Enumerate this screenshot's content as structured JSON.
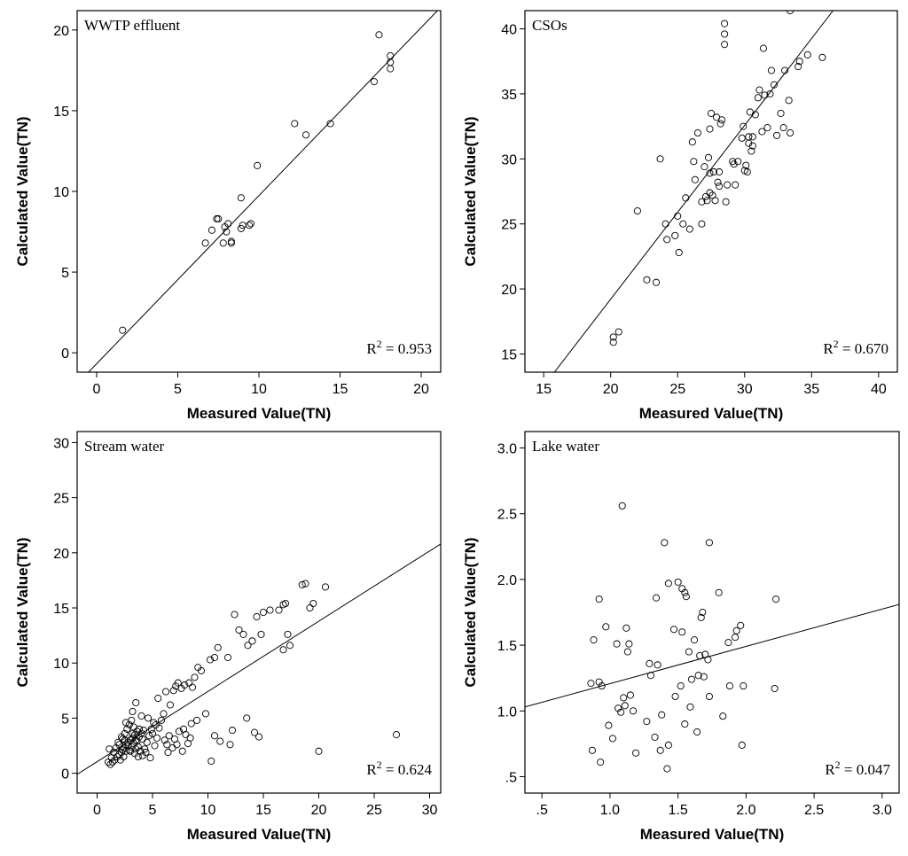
{
  "chart_data": [
    {
      "type": "scatter",
      "title": "WWTP effluent",
      "xlabel": "Measured Value(TN)",
      "ylabel": "Calculated Value(TN)",
      "xlim": [
        -1.2,
        21.2
      ],
      "ylim": [
        -1.2,
        21.2
      ],
      "xticks": [
        0,
        5,
        10,
        15,
        20
      ],
      "xtick_labels": [
        "0",
        "5",
        "10",
        "15",
        "20"
      ],
      "yticks": [
        0,
        5,
        10,
        15,
        20
      ],
      "ytick_labels": [
        "0",
        "5",
        "10",
        "15",
        "20"
      ],
      "r2_prefix": "R",
      "r2_exp": "2",
      "r2_value": " = 0.953",
      "fit": [
        [
          -0.5,
          -1.2
        ],
        [
          21.0,
          21.2
        ]
      ],
      "points": [
        [
          1.6,
          1.4
        ],
        [
          6.7,
          6.8
        ],
        [
          7.1,
          7.6
        ],
        [
          7.4,
          8.3
        ],
        [
          7.5,
          8.3
        ],
        [
          7.8,
          6.8
        ],
        [
          7.9,
          7.8
        ],
        [
          8.0,
          7.5
        ],
        [
          8.1,
          8.0
        ],
        [
          8.3,
          6.9
        ],
        [
          8.3,
          6.8
        ],
        [
          8.9,
          9.6
        ],
        [
          8.9,
          7.7
        ],
        [
          9.0,
          7.9
        ],
        [
          9.4,
          7.9
        ],
        [
          9.5,
          8.0
        ],
        [
          9.9,
          11.6
        ],
        [
          12.2,
          14.2
        ],
        [
          12.9,
          13.5
        ],
        [
          14.4,
          14.2
        ],
        [
          17.1,
          16.8
        ],
        [
          17.4,
          19.7
        ],
        [
          18.1,
          18.4
        ],
        [
          18.1,
          18.0
        ],
        [
          18.1,
          17.6
        ]
      ]
    },
    {
      "type": "scatter",
      "title": "CSOs",
      "xlabel": "Measured Value(TN)",
      "ylabel": "Calculated Value(TN)",
      "xlim": [
        13.6,
        41.4
      ],
      "ylim": [
        13.6,
        41.4
      ],
      "xticks": [
        15,
        20,
        25,
        30,
        35,
        40
      ],
      "xtick_labels": [
        "15",
        "20",
        "25",
        "30",
        "35",
        "40"
      ],
      "yticks": [
        15,
        20,
        25,
        30,
        35,
        40
      ],
      "ytick_labels": [
        "15",
        "20",
        "25",
        "30",
        "35",
        "40"
      ],
      "r2_prefix": "R",
      "r2_exp": "2",
      "r2_value": " = 0.670",
      "fit": [
        [
          15.8,
          13.6
        ],
        [
          36.6,
          41.4
        ]
      ],
      "points": [
        [
          20.2,
          15.9
        ],
        [
          20.2,
          16.3
        ],
        [
          20.6,
          16.7
        ],
        [
          22.0,
          26.0
        ],
        [
          22.7,
          20.7
        ],
        [
          23.4,
          20.5
        ],
        [
          23.7,
          30.0
        ],
        [
          24.1,
          25.0
        ],
        [
          24.2,
          23.8
        ],
        [
          24.8,
          24.1
        ],
        [
          25.0,
          25.6
        ],
        [
          25.1,
          22.8
        ],
        [
          25.4,
          25.0
        ],
        [
          25.6,
          27.0
        ],
        [
          25.9,
          24.6
        ],
        [
          26.1,
          31.3
        ],
        [
          26.2,
          29.8
        ],
        [
          26.3,
          28.4
        ],
        [
          26.5,
          32.0
        ],
        [
          26.8,
          26.7
        ],
        [
          26.8,
          25.0
        ],
        [
          27.0,
          29.4
        ],
        [
          27.1,
          27.1
        ],
        [
          27.2,
          26.8
        ],
        [
          27.3,
          30.1
        ],
        [
          27.4,
          32.3
        ],
        [
          27.4,
          27.4
        ],
        [
          27.4,
          28.9
        ],
        [
          27.5,
          33.5
        ],
        [
          27.6,
          27.2
        ],
        [
          27.7,
          29.0
        ],
        [
          27.8,
          26.8
        ],
        [
          27.9,
          33.2
        ],
        [
          28.0,
          28.2
        ],
        [
          28.1,
          29.0
        ],
        [
          28.1,
          27.9
        ],
        [
          28.2,
          32.7
        ],
        [
          28.3,
          33.0
        ],
        [
          28.5,
          40.4
        ],
        [
          28.5,
          39.6
        ],
        [
          28.5,
          38.8
        ],
        [
          28.6,
          26.7
        ],
        [
          28.7,
          28.0
        ],
        [
          29.1,
          29.8
        ],
        [
          29.2,
          29.6
        ],
        [
          29.3,
          28.0
        ],
        [
          29.5,
          29.8
        ],
        [
          29.8,
          31.6
        ],
        [
          29.9,
          32.5
        ],
        [
          30.0,
          29.1
        ],
        [
          30.1,
          29.5
        ],
        [
          30.2,
          29.0
        ],
        [
          30.3,
          31.2
        ],
        [
          30.3,
          31.7
        ],
        [
          30.4,
          33.6
        ],
        [
          30.5,
          30.6
        ],
        [
          30.6,
          31.7
        ],
        [
          30.6,
          31.0
        ],
        [
          30.8,
          33.4
        ],
        [
          31.0,
          34.7
        ],
        [
          31.1,
          35.3
        ],
        [
          31.3,
          32.1
        ],
        [
          31.4,
          38.5
        ],
        [
          31.5,
          34.9
        ],
        [
          31.7,
          32.4
        ],
        [
          31.9,
          35.0
        ],
        [
          32.0,
          36.8
        ],
        [
          32.2,
          35.7
        ],
        [
          32.4,
          31.8
        ],
        [
          32.7,
          33.5
        ],
        [
          32.9,
          32.4
        ],
        [
          33.0,
          36.8
        ],
        [
          33.3,
          34.5
        ],
        [
          33.4,
          32.0
        ],
        [
          33.4,
          41.4
        ],
        [
          34.0,
          37.1
        ],
        [
          34.1,
          37.5
        ],
        [
          34.7,
          38.0
        ],
        [
          35.8,
          37.8
        ]
      ]
    },
    {
      "type": "scatter",
      "title": "Stream water",
      "xlabel": "Measured Value(TN)",
      "ylabel": "Calculated Value(TN)",
      "xlim": [
        -1.8,
        31.0
      ],
      "ylim": [
        -1.8,
        31.0
      ],
      "xticks": [
        0,
        5,
        10,
        15,
        20,
        25,
        30
      ],
      "xtick_labels": [
        "0",
        "5",
        "10",
        "15",
        "20",
        "25",
        "30"
      ],
      "yticks": [
        0,
        5,
        10,
        15,
        20,
        25,
        30
      ],
      "ytick_labels": [
        "0",
        "5",
        "10",
        "15",
        "20",
        "25",
        "30"
      ],
      "r2_prefix": "R",
      "r2_exp": "2",
      "r2_value": " = 0.624",
      "fit": [
        [
          -1.8,
          -0.1
        ],
        [
          31.0,
          20.8
        ]
      ],
      "points": [
        [
          1.2,
          0.8
        ],
        [
          1.4,
          1.0
        ],
        [
          1.6,
          1.2
        ],
        [
          1.8,
          1.5
        ],
        [
          2.0,
          1.7
        ],
        [
          2.2,
          1.9
        ],
        [
          2.4,
          2.3
        ],
        [
          2.6,
          2.6
        ],
        [
          2.8,
          2.8
        ],
        [
          3.0,
          3.0
        ],
        [
          3.2,
          3.2
        ],
        [
          3.4,
          3.5
        ],
        [
          3.6,
          3.8
        ],
        [
          3.8,
          4.0
        ],
        [
          2.0,
          2.6
        ],
        [
          2.3,
          3.1
        ],
        [
          2.5,
          3.6
        ],
        [
          2.7,
          4.0
        ],
        [
          2.9,
          4.4
        ],
        [
          3.1,
          4.8
        ],
        [
          3.3,
          4.2
        ],
        [
          3.5,
          3.0
        ],
        [
          3.7,
          2.4
        ],
        [
          3.9,
          2.0
        ],
        [
          4.1,
          1.6
        ],
        [
          4.3,
          2.2
        ],
        [
          4.5,
          2.8
        ],
        [
          4.7,
          3.4
        ],
        [
          4.9,
          4.0
        ],
        [
          5.1,
          4.6
        ],
        [
          2.1,
          1.2
        ],
        [
          2.4,
          1.5
        ],
        [
          2.6,
          2.0
        ],
        [
          2.9,
          2.1
        ],
        [
          3.1,
          2.4
        ],
        [
          3.3,
          2.7
        ],
        [
          3.6,
          2.9
        ],
        [
          3.8,
          3.3
        ],
        [
          4.0,
          3.6
        ],
        [
          4.2,
          3.9
        ],
        [
          1.5,
          1.9
        ],
        [
          1.7,
          2.3
        ],
        [
          1.9,
          2.8
        ],
        [
          2.2,
          3.3
        ],
        [
          2.5,
          3.0
        ],
        [
          2.8,
          2.5
        ],
        [
          3.0,
          2.0
        ],
        [
          3.4,
          1.8
        ],
        [
          3.7,
          1.5
        ],
        [
          4.4,
          1.9
        ],
        [
          2.6,
          4.6
        ],
        [
          3.2,
          5.6
        ],
        [
          3.5,
          6.4
        ],
        [
          4.0,
          5.2
        ],
        [
          4.6,
          5.0
        ],
        [
          5.2,
          2.5
        ],
        [
          5.4,
          3.2
        ],
        [
          5.6,
          4.1
        ],
        [
          5.8,
          4.8
        ],
        [
          6.0,
          5.4
        ],
        [
          5.5,
          6.8
        ],
        [
          6.2,
          7.4
        ],
        [
          6.6,
          6.2
        ],
        [
          6.9,
          7.5
        ],
        [
          7.1,
          7.9
        ],
        [
          7.3,
          8.2
        ],
        [
          7.6,
          7.7
        ],
        [
          7.9,
          8.0
        ],
        [
          8.3,
          8.2
        ],
        [
          8.6,
          7.8
        ],
        [
          8.8,
          8.7
        ],
        [
          9.1,
          9.6
        ],
        [
          9.4,
          9.3
        ],
        [
          10.2,
          10.3
        ],
        [
          10.6,
          10.5
        ],
        [
          10.9,
          11.4
        ],
        [
          11.8,
          10.5
        ],
        [
          12.4,
          14.4
        ],
        [
          12.8,
          13.0
        ],
        [
          13.2,
          12.6
        ],
        [
          13.6,
          11.6
        ],
        [
          14.0,
          12.0
        ],
        [
          14.4,
          14.2
        ],
        [
          14.8,
          12.6
        ],
        [
          15.0,
          14.6
        ],
        [
          15.6,
          14.8
        ],
        [
          16.4,
          14.8
        ],
        [
          16.8,
          15.3
        ],
        [
          17.0,
          15.4
        ],
        [
          17.2,
          12.6
        ],
        [
          17.4,
          11.6
        ],
        [
          16.8,
          11.2
        ],
        [
          18.5,
          17.1
        ],
        [
          18.8,
          17.2
        ],
        [
          19.2,
          15.0
        ],
        [
          19.5,
          15.4
        ],
        [
          20.6,
          16.9
        ],
        [
          6.4,
          1.9
        ],
        [
          6.8,
          2.3
        ],
        [
          7.2,
          2.6
        ],
        [
          7.7,
          2.0
        ],
        [
          8.2,
          2.7
        ],
        [
          8.4,
          3.2
        ],
        [
          9.8,
          5.4
        ],
        [
          10.3,
          1.1
        ],
        [
          10.6,
          3.4
        ],
        [
          11.1,
          2.9
        ],
        [
          12.0,
          2.6
        ],
        [
          12.2,
          3.9
        ],
        [
          13.5,
          5.0
        ],
        [
          14.2,
          3.7
        ],
        [
          14.6,
          3.3
        ],
        [
          20.0,
          2.0
        ],
        [
          27.0,
          3.5
        ],
        [
          1.0,
          1.0
        ],
        [
          1.3,
          1.4
        ],
        [
          1.1,
          2.2
        ],
        [
          4.8,
          1.4
        ],
        [
          5.0,
          3.6
        ],
        [
          5.3,
          4.4
        ],
        [
          6.1,
          3.0
        ],
        [
          6.3,
          2.6
        ],
        [
          6.5,
          3.4
        ],
        [
          7.0,
          3.1
        ],
        [
          7.4,
          3.8
        ],
        [
          7.8,
          4.0
        ],
        [
          8.0,
          3.5
        ],
        [
          8.5,
          4.5
        ],
        [
          9.0,
          4.8
        ],
        [
          3.2,
          3.6
        ],
        [
          2.3,
          2.1
        ],
        [
          4.1,
          3.1
        ],
        [
          3.5,
          2.2
        ]
      ]
    },
    {
      "type": "scatter",
      "title": "Lake water",
      "xlabel": "Measured Value(TN)",
      "ylabel": "Calculated Value(TN)",
      "xlim": [
        0.375,
        3.125
      ],
      "ylim": [
        0.375,
        3.125
      ],
      "xticks": [
        0.5,
        1.0,
        1.5,
        2.0,
        2.5,
        3.0
      ],
      "xtick_labels": [
        ".5",
        "1.0",
        "1.5",
        "2.0",
        "2.5",
        "3.0"
      ],
      "yticks": [
        0.5,
        1.0,
        1.5,
        2.0,
        2.5,
        3.0
      ],
      "ytick_labels": [
        ".5",
        "1.0",
        "1.5",
        "2.0",
        "2.5",
        "3.0"
      ],
      "r2_prefix": "R",
      "r2_exp": "2",
      "r2_value": " = 0.047",
      "fit": [
        [
          0.375,
          1.03
        ],
        [
          3.125,
          1.81
        ]
      ],
      "points": [
        [
          0.86,
          1.21
        ],
        [
          0.87,
          0.7
        ],
        [
          0.88,
          1.54
        ],
        [
          0.92,
          1.85
        ],
        [
          0.92,
          1.22
        ],
        [
          0.93,
          0.61
        ],
        [
          0.94,
          1.19
        ],
        [
          0.97,
          1.64
        ],
        [
          0.99,
          0.89
        ],
        [
          1.02,
          0.79
        ],
        [
          1.05,
          1.51
        ],
        [
          1.06,
          1.02
        ],
        [
          1.08,
          0.99
        ],
        [
          1.09,
          2.56
        ],
        [
          1.1,
          1.1
        ],
        [
          1.11,
          1.04
        ],
        [
          1.12,
          1.63
        ],
        [
          1.13,
          1.45
        ],
        [
          1.14,
          1.51
        ],
        [
          1.15,
          1.12
        ],
        [
          1.17,
          1.0
        ],
        [
          1.19,
          0.68
        ],
        [
          1.27,
          0.92
        ],
        [
          1.29,
          1.36
        ],
        [
          1.3,
          1.27
        ],
        [
          1.33,
          0.8
        ],
        [
          1.34,
          1.86
        ],
        [
          1.35,
          1.35
        ],
        [
          1.37,
          0.7
        ],
        [
          1.38,
          0.97
        ],
        [
          1.4,
          2.28
        ],
        [
          1.42,
          0.56
        ],
        [
          1.43,
          1.97
        ],
        [
          1.43,
          0.74
        ],
        [
          1.47,
          1.62
        ],
        [
          1.48,
          1.11
        ],
        [
          1.5,
          1.98
        ],
        [
          1.52,
          1.19
        ],
        [
          1.53,
          1.6
        ],
        [
          1.53,
          1.93
        ],
        [
          1.55,
          1.9
        ],
        [
          1.55,
          0.9
        ],
        [
          1.56,
          1.87
        ],
        [
          1.58,
          1.45
        ],
        [
          1.59,
          1.03
        ],
        [
          1.6,
          1.24
        ],
        [
          1.62,
          1.54
        ],
        [
          1.64,
          0.84
        ],
        [
          1.65,
          1.27
        ],
        [
          1.66,
          1.42
        ],
        [
          1.67,
          1.71
        ],
        [
          1.68,
          1.75
        ],
        [
          1.69,
          1.26
        ],
        [
          1.7,
          1.43
        ],
        [
          1.72,
          1.39
        ],
        [
          1.73,
          2.28
        ],
        [
          1.73,
          1.11
        ],
        [
          1.8,
          1.9
        ],
        [
          1.83,
          0.96
        ],
        [
          1.87,
          1.52
        ],
        [
          1.88,
          1.19
        ],
        [
          1.92,
          1.56
        ],
        [
          1.93,
          1.61
        ],
        [
          1.96,
          1.65
        ],
        [
          1.97,
          0.74
        ],
        [
          1.98,
          1.19
        ],
        [
          2.21,
          1.17
        ],
        [
          2.22,
          1.85
        ]
      ]
    }
  ]
}
